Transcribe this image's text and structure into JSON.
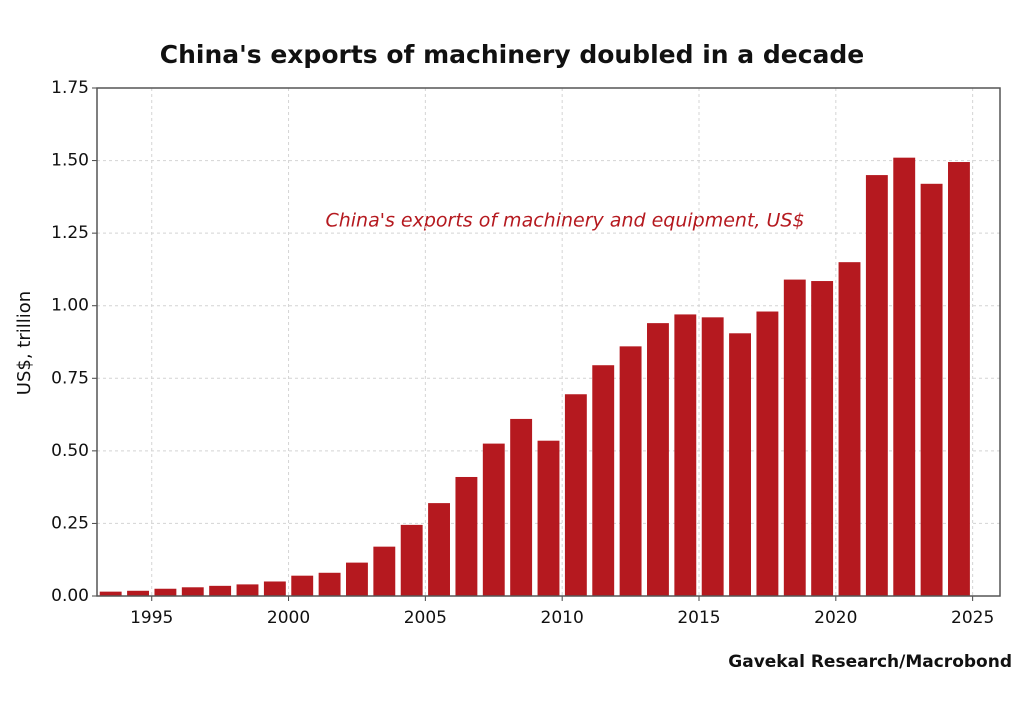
{
  "chart_data": {
    "type": "bar",
    "title": "China's exports of machinery doubled in a decade",
    "annotation": "China's exports of machinery and equipment, US$",
    "y_label": "US$, trillion",
    "source": "Gavekal Research/Macrobond",
    "x": [
      1993,
      1994,
      1995,
      1996,
      1997,
      1998,
      1999,
      2000,
      2001,
      2002,
      2003,
      2004,
      2005,
      2006,
      2007,
      2008,
      2009,
      2010,
      2011,
      2012,
      2013,
      2014,
      2015,
      2016,
      2017,
      2018,
      2019,
      2020,
      2021,
      2022,
      2023,
      2024
    ],
    "values": [
      0.015,
      0.018,
      0.025,
      0.03,
      0.035,
      0.04,
      0.05,
      0.07,
      0.08,
      0.115,
      0.17,
      0.245,
      0.32,
      0.41,
      0.525,
      0.61,
      0.535,
      0.695,
      0.795,
      0.86,
      0.94,
      0.97,
      0.96,
      0.905,
      0.98,
      1.09,
      1.085,
      1.15,
      1.45,
      1.51,
      1.42,
      1.495
    ],
    "color": "#b5191f",
    "annotation_color": "#b5191f",
    "xlim": [
      1993,
      2026
    ],
    "ylim": [
      0,
      1.75
    ],
    "xticks": [
      1995,
      2000,
      2005,
      2010,
      2015,
      2020,
      2025
    ],
    "yticks": [
      {
        "value": 0,
        "label": "0.00"
      },
      {
        "value": 0.25,
        "label": "0.25"
      },
      {
        "value": 0.5,
        "label": "0.50"
      },
      {
        "value": 0.75,
        "label": "0.75"
      },
      {
        "value": 1,
        "label": "1.00"
      },
      {
        "value": 1.25,
        "label": "1.25"
      },
      {
        "value": 1.5,
        "label": "1.50"
      },
      {
        "value": 1.75,
        "label": "1.75"
      }
    ],
    "grid": true
  }
}
